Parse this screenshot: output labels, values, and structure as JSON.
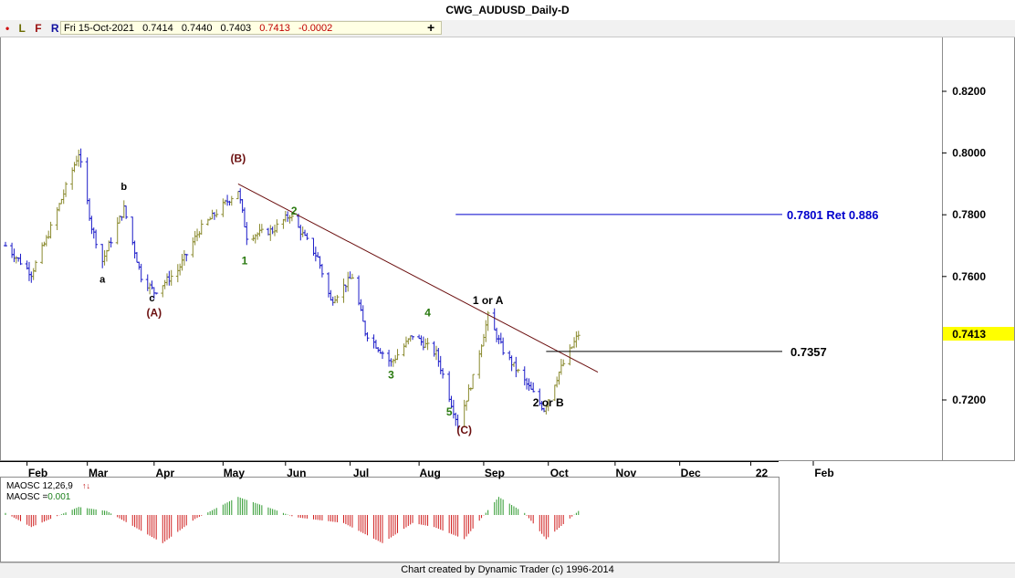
{
  "window": {
    "title": "CWG_AUDUSD_Daily-D"
  },
  "toolbar": {
    "dot": "•",
    "l": "L",
    "f": "F",
    "r": "R",
    "plus": "+"
  },
  "quote": {
    "date": "Fri 15-Oct-2021",
    "open": "0.7414",
    "high": "0.7440",
    "low": "0.7403",
    "close": "0.7413",
    "change": "-0.0002"
  },
  "colors": {
    "up_bar": "#8a8a2e",
    "down_bar": "#1c1cc8",
    "accent": "#0000cc",
    "maroon": "#6b0f0f",
    "wave_green": "#2a7a10",
    "current_price_bg": "#ffff00"
  },
  "chart_data": {
    "type": "ohlc",
    "symbol": "CWG_AUDUSD",
    "timeframe": "Daily",
    "y_ticks": [
      "0.8200",
      "0.8000",
      "0.7800",
      "0.7600",
      "0.7200"
    ],
    "ylim": [
      0.708,
      0.837
    ],
    "x_ticks": [
      "Feb",
      "Mar",
      "Apr",
      "May",
      "Jun",
      "Jul",
      "Aug",
      "Sep",
      "Oct",
      "Nov",
      "Dec",
      "22",
      "Feb"
    ],
    "price_path": [
      {
        "date": "2021-01-22",
        "price": 0.77
      },
      {
        "date": "2021-02-03",
        "price": 0.761
      },
      {
        "date": "2021-02-10",
        "price": 0.772
      },
      {
        "date": "2021-02-25",
        "price": 0.8
      },
      {
        "date": "2021-03-03",
        "price": 0.776
      },
      {
        "date": "2021-03-08",
        "price": 0.765
      },
      {
        "date": "2021-03-18",
        "price": 0.782
      },
      {
        "date": "2021-03-26",
        "price": 0.76
      },
      {
        "date": "2021-04-01",
        "price": 0.755
      },
      {
        "date": "2021-04-12",
        "price": 0.762
      },
      {
        "date": "2021-04-22",
        "price": 0.775
      },
      {
        "date": "2021-05-10",
        "price": 0.788
      },
      {
        "date": "2021-05-14",
        "price": 0.773
      },
      {
        "date": "2021-05-26",
        "price": 0.775
      },
      {
        "date": "2021-06-03",
        "price": 0.78
      },
      {
        "date": "2021-06-16",
        "price": 0.766
      },
      {
        "date": "2021-06-22",
        "price": 0.752
      },
      {
        "date": "2021-07-02",
        "price": 0.76
      },
      {
        "date": "2021-07-08",
        "price": 0.742
      },
      {
        "date": "2021-07-20",
        "price": 0.732
      },
      {
        "date": "2021-07-30",
        "price": 0.741
      },
      {
        "date": "2021-08-10",
        "price": 0.735
      },
      {
        "date": "2021-08-20",
        "price": 0.712
      },
      {
        "date": "2021-08-27",
        "price": 0.727
      },
      {
        "date": "2021-09-03",
        "price": 0.747
      },
      {
        "date": "2021-09-10",
        "price": 0.736
      },
      {
        "date": "2021-09-22",
        "price": 0.724
      },
      {
        "date": "2021-09-29",
        "price": 0.717
      },
      {
        "date": "2021-10-06",
        "price": 0.729
      },
      {
        "date": "2021-10-15",
        "price": 0.7413
      }
    ],
    "trendline": {
      "from": {
        "date": "2021-05-10",
        "price": 0.79
      },
      "to": {
        "date": "2021-10-24",
        "price": 0.729
      }
    },
    "levels": [
      {
        "price": 0.7801,
        "label": "0.7801 Ret 0.886",
        "from_date": "2021-08-19"
      },
      {
        "price": 0.7357,
        "label": "0.7357",
        "from_date": "2021-09-30"
      }
    ],
    "current_price": "0.7413",
    "wave_labels": [
      {
        "text": "(B)",
        "date": "2021-05-10",
        "price": 0.797,
        "style": "maroon"
      },
      {
        "text": "b",
        "date": "2021-03-18",
        "price": 0.788,
        "style": "black"
      },
      {
        "text": "a",
        "date": "2021-03-08",
        "price": 0.758,
        "style": "black"
      },
      {
        "text": "c",
        "date": "2021-03-31",
        "price": 0.752,
        "style": "black"
      },
      {
        "text": "(A)",
        "date": "2021-04-01",
        "price": 0.747,
        "style": "maroon"
      },
      {
        "text": "1",
        "date": "2021-05-13",
        "price": 0.764,
        "style": "green"
      },
      {
        "text": "2",
        "date": "2021-06-05",
        "price": 0.78,
        "style": "green"
      },
      {
        "text": "3",
        "date": "2021-07-20",
        "price": 0.727,
        "style": "green"
      },
      {
        "text": "4",
        "date": "2021-08-06",
        "price": 0.747,
        "style": "green"
      },
      {
        "text": "5",
        "date": "2021-08-16",
        "price": 0.715,
        "style": "green"
      },
      {
        "text": "(C)",
        "date": "2021-08-23",
        "price": 0.709,
        "style": "maroon"
      },
      {
        "text": "1 or A",
        "date": "2021-09-03",
        "price": 0.751,
        "style": "black"
      },
      {
        "text": "2 or B",
        "date": "2021-10-01",
        "price": 0.718,
        "style": "black"
      }
    ],
    "oscillator": {
      "name": "MAOSC 12,26,9",
      "value_label": "MAOSC =",
      "value": "0.001",
      "ylim": [
        -0.0105,
        0.0055
      ],
      "path": [
        {
          "date": "2021-01-22",
          "v": 0.0005
        },
        {
          "date": "2021-02-03",
          "v": -0.003
        },
        {
          "date": "2021-02-25",
          "v": 0.002
        },
        {
          "date": "2021-03-10",
          "v": 0.001
        },
        {
          "date": "2021-04-05",
          "v": -0.007
        },
        {
          "date": "2021-04-20",
          "v": -0.001
        },
        {
          "date": "2021-05-10",
          "v": 0.0045
        },
        {
          "date": "2021-05-26",
          "v": 0.0015
        },
        {
          "date": "2021-06-05",
          "v": -0.0005
        },
        {
          "date": "2021-06-28",
          "v": -0.002
        },
        {
          "date": "2021-07-16",
          "v": -0.007
        },
        {
          "date": "2021-07-30",
          "v": -0.002
        },
        {
          "date": "2021-08-09",
          "v": -0.003
        },
        {
          "date": "2021-08-23",
          "v": -0.006
        },
        {
          "date": "2021-09-08",
          "v": 0.0045
        },
        {
          "date": "2021-09-20",
          "v": 0.0005
        },
        {
          "date": "2021-09-30",
          "v": -0.006
        },
        {
          "date": "2021-10-15",
          "v": 0.001
        }
      ]
    }
  },
  "footer": {
    "text": "Chart created by Dynamic Trader  (c) 1996-2014"
  }
}
